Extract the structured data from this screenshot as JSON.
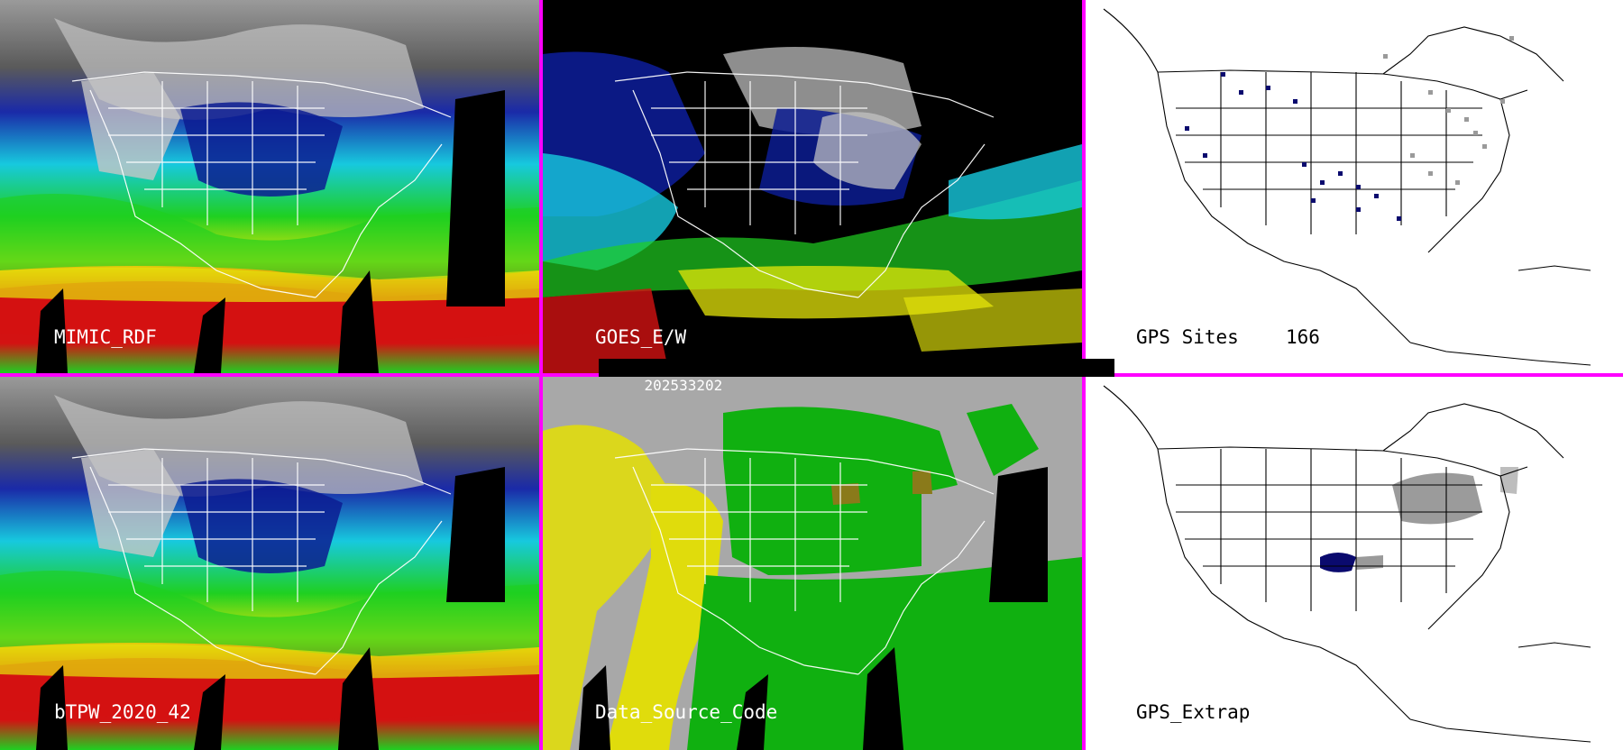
{
  "panels": [
    {
      "id": "p1",
      "label": "MIMIC_RDF",
      "theme": "tpw"
    },
    {
      "id": "p2",
      "label": "GOES_E/W",
      "theme": "goes"
    },
    {
      "id": "p3",
      "label": "GPS Sites",
      "count": "166",
      "theme": "sites"
    },
    {
      "id": "p4",
      "label": "bTPW_2020_42",
      "theme": "tpw"
    },
    {
      "id": "p5",
      "label": "Data_Source_Code",
      "theme": "source"
    },
    {
      "id": "p6",
      "label": "GPS_Extrap",
      "theme": "extrap"
    }
  ],
  "timestamp": "202533202",
  "colors": {
    "separator": "#ff00ff",
    "land_dry": "#bdbdbd",
    "ocean_dry": "#1b2fb0",
    "tpw_low": "#0a1a8c",
    "tpw_mid_low": "#18c8e0",
    "tpw_mid": "#1fd021",
    "tpw_mid_high": "#e6e60a",
    "tpw_high": "#d31212",
    "source_gray": "#a8a8a8",
    "source_green": "#10b010",
    "source_yellow": "#e0dc0c",
    "source_olive": "#8a7a1a",
    "gps_site_dark": "#0a0a6e",
    "gps_site_gray": "#9a9a9a"
  }
}
